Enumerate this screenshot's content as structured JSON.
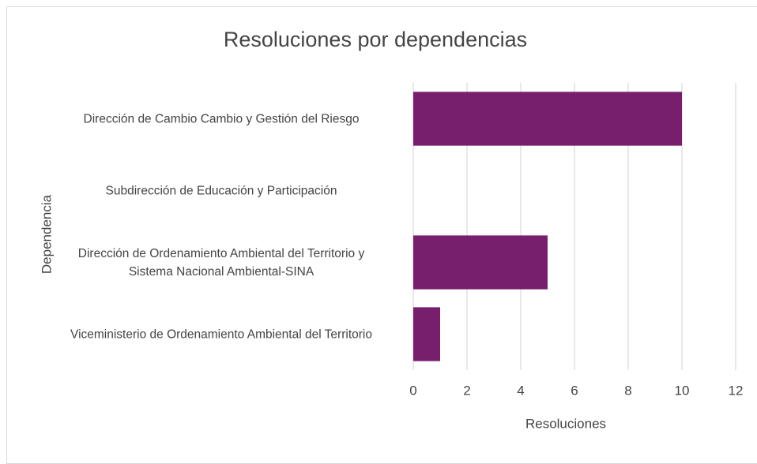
{
  "chart_data": {
    "type": "barh",
    "title": "Resoluciones por dependencias",
    "xlabel": "Resoluciones",
    "ylabel": "Dependencia",
    "categories": [
      "Dirección de Cambio Cambio y Gestión del Riesgo",
      "Subdirección de Educación y Participación",
      "Dirección de Ordenamiento Ambiental del Territorio y Sistema Nacional Ambiental-SINA",
      "Viceministerio de Ordenamiento Ambiental del Territorio"
    ],
    "values": [
      10,
      0,
      5,
      1
    ],
    "color": "#771f6d",
    "xlim": [
      0,
      12
    ],
    "xticks": [
      0,
      2,
      4,
      6,
      8,
      10,
      12
    ],
    "grid": true
  }
}
